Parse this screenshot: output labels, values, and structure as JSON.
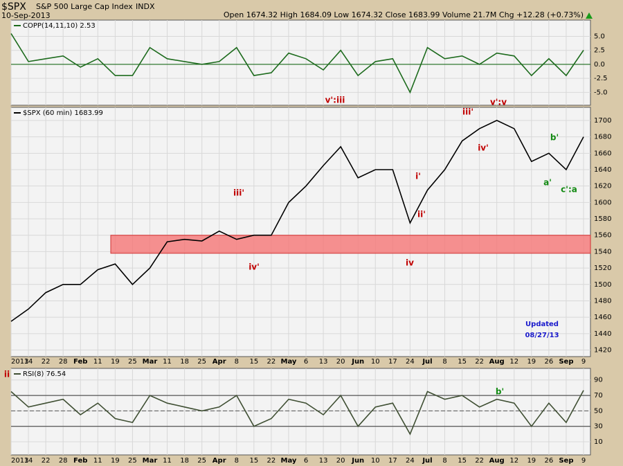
{
  "header": {
    "symbol": "$SPX",
    "name": "S&P 500 Large Cap Index",
    "exchange": "INDX",
    "date": "10-Sep-2013",
    "quote": "Open 1674.32 High 1684.09 Low 1674.32 Close 1683.99 Volume 21.7M Chg +12.28 (+0.73%)"
  },
  "chart_data": [
    {
      "type": "line",
      "legend": "COPP(14,11,10) 2.53",
      "color": "#1d6b1d",
      "values": [
        5.5,
        0.5,
        1,
        1.5,
        -0.5,
        1,
        -2,
        -2,
        3,
        1,
        0.5,
        0,
        0.5,
        3,
        -2,
        -1.5,
        2,
        1,
        -1,
        2.5,
        -2,
        0.5,
        1,
        -5,
        3,
        1,
        1.5,
        0,
        2,
        1.5,
        -2,
        1,
        -2,
        2.53
      ],
      "ylim": [
        -7.3,
        7.9
      ],
      "yticks": [
        {
          "value": 5,
          "label": "5.0"
        },
        {
          "value": 2.5,
          "label": "2.5"
        },
        {
          "value": 0,
          "label": "0.0"
        },
        {
          "value": -2.5,
          "label": "-2.5"
        },
        {
          "value": -5,
          "label": "-5.0"
        }
      ],
      "grid": true
    },
    {
      "type": "line",
      "legend": "$SPX (60 min) 1683.99",
      "color": "#000000",
      "categories": [
        "2013",
        "14",
        "22",
        "28",
        "Feb",
        "11",
        "19",
        "25",
        "Mar",
        "11",
        "18",
        "25",
        "Apr",
        "8",
        "15",
        "22",
        "May",
        "6",
        "13",
        "20",
        "Jun",
        "10",
        "17",
        "24",
        "Jul",
        "8",
        "15",
        "22",
        "Aug",
        "12",
        "19",
        "26",
        "Sep",
        "9"
      ],
      "values": [
        1455,
        1470,
        1490,
        1500,
        1500,
        1518,
        1525,
        1500,
        1520,
        1552,
        1555,
        1553,
        1565,
        1555,
        1560,
        1560,
        1600,
        1620,
        1645,
        1668,
        1630,
        1640,
        1640,
        1575,
        1615,
        1640,
        1675,
        1690,
        1700,
        1690,
        1650,
        1660,
        1640,
        1680
      ],
      "ylim": [
        1412,
        1716
      ],
      "yticks": [
        1420,
        1440,
        1460,
        1480,
        1500,
        1520,
        1540,
        1560,
        1580,
        1600,
        1620,
        1640,
        1660,
        1680,
        1700
      ],
      "support_zone": [
        1538,
        1560
      ],
      "support_color": "#f47c7c",
      "annotations": [
        {
          "text": "v':iii",
          "color": "#c00000"
        },
        {
          "text": "iii'",
          "color": "#c00000"
        },
        {
          "text": "v':v",
          "color": "#c00000"
        },
        {
          "text": "iv'",
          "color": "#c00000"
        },
        {
          "text": "b'",
          "color": "#138a13"
        },
        {
          "text": "i'",
          "color": "#c00000"
        },
        {
          "text": "ii'",
          "color": "#c00000"
        },
        {
          "text": "a'",
          "color": "#138a13"
        },
        {
          "text": "c':a",
          "color": "#138a13"
        },
        {
          "text": "iii'",
          "color": "#c00000"
        },
        {
          "text": "iv'",
          "color": "#c00000"
        },
        {
          "text": "iv",
          "color": "#c00000"
        },
        {
          "text": "Updated",
          "color": "#1a1acc"
        },
        {
          "text": "08/27/13",
          "color": "#1a1acc"
        }
      ],
      "grid": true
    },
    {
      "type": "line",
      "legend": "RSI(8) 76.54",
      "color": "#3f4f33",
      "categories": [
        "2013",
        "14",
        "22",
        "28",
        "Feb",
        "11",
        "19",
        "25",
        "Mar",
        "11",
        "18",
        "25",
        "Apr",
        "8",
        "15",
        "22",
        "May",
        "6",
        "13",
        "20",
        "Jun",
        "10",
        "17",
        "24",
        "Jul",
        "8",
        "15",
        "22",
        "Aug",
        "12",
        "19",
        "26",
        "Sep",
        "9"
      ],
      "values": [
        75,
        55,
        60,
        65,
        45,
        60,
        40,
        35,
        70,
        60,
        55,
        50,
        55,
        70,
        30,
        40,
        65,
        60,
        45,
        70,
        30,
        55,
        60,
        20,
        75,
        65,
        70,
        55,
        65,
        60,
        30,
        60,
        35,
        76.54
      ],
      "ylim": [
        -7,
        105
      ],
      "yticks": [
        10,
        30,
        50,
        70,
        90
      ],
      "annotations": [
        {
          "text": "b'",
          "color": "#138a13"
        },
        {
          "text": "ii",
          "color": "#c00000"
        }
      ],
      "grid": true
    }
  ]
}
